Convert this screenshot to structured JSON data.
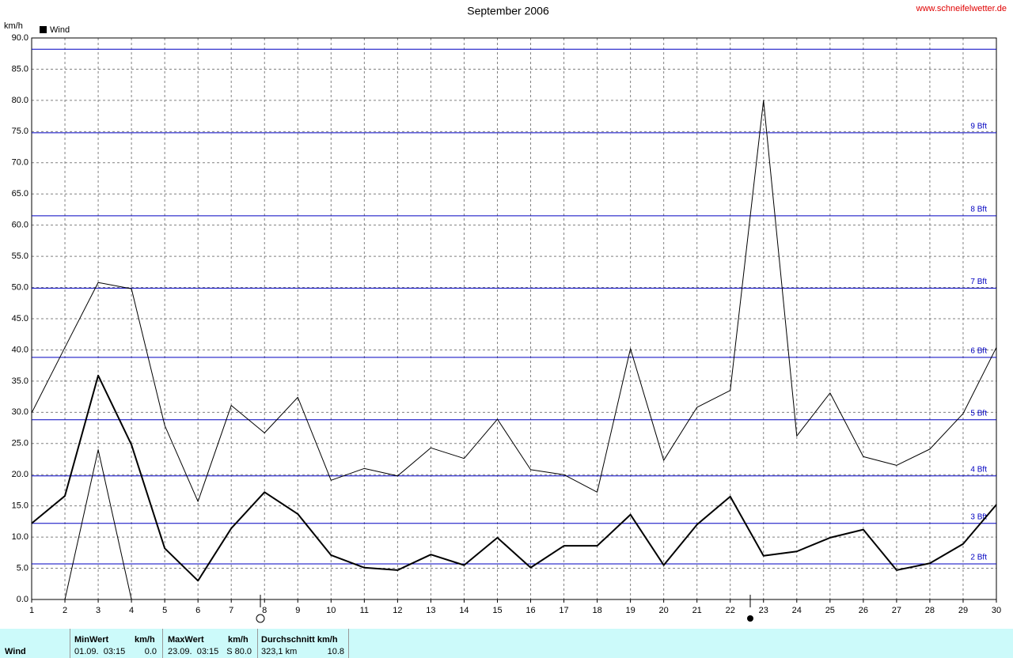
{
  "chart_data": {
    "type": "line",
    "title": "September 2006",
    "y_label": "km/h",
    "legend": {
      "label": "Wind",
      "color": "#000000",
      "position": "top-left"
    },
    "source": "www.schneifelwetter.de",
    "x": [
      1,
      2,
      3,
      4,
      5,
      6,
      7,
      8,
      9,
      10,
      11,
      12,
      13,
      14,
      15,
      16,
      17,
      18,
      19,
      20,
      21,
      22,
      23,
      24,
      25,
      26,
      27,
      28,
      29,
      30
    ],
    "xlim": [
      1,
      30
    ],
    "xticks": [
      1,
      2,
      3,
      4,
      5,
      6,
      7,
      8,
      9,
      10,
      11,
      12,
      13,
      14,
      15,
      16,
      17,
      18,
      19,
      20,
      21,
      22,
      23,
      24,
      25,
      26,
      27,
      28,
      29,
      30
    ],
    "ylim": [
      0,
      90
    ],
    "yticks": [
      {
        "value": 0,
        "label": "0.0"
      },
      {
        "value": 5,
        "label": "5.0"
      },
      {
        "value": 10,
        "label": "10.0"
      },
      {
        "value": 15,
        "label": "15.0"
      },
      {
        "value": 20,
        "label": "20.0"
      },
      {
        "value": 25,
        "label": "25.0"
      },
      {
        "value": 30,
        "label": "30.0"
      },
      {
        "value": 35,
        "label": "35.0"
      },
      {
        "value": 40,
        "label": "40.0"
      },
      {
        "value": 45,
        "label": "45.0"
      },
      {
        "value": 50,
        "label": "50.0"
      },
      {
        "value": 55,
        "label": "55.0"
      },
      {
        "value": 60,
        "label": "60.0"
      },
      {
        "value": 65,
        "label": "65.0"
      },
      {
        "value": 70,
        "label": "70.0"
      },
      {
        "value": 75,
        "label": "75.0"
      },
      {
        "value": 80,
        "label": "80.0"
      },
      {
        "value": 85,
        "label": "85.0"
      },
      {
        "value": 90,
        "label": "90.0"
      }
    ],
    "grid": true,
    "reference_color": "#0000c0",
    "reference_lines": [
      {
        "value": 5.7,
        "label": "2 Bft"
      },
      {
        "value": 12.2,
        "label": "3 Bft"
      },
      {
        "value": 19.8,
        "label": "4 Bft"
      },
      {
        "value": 28.8,
        "label": "5 Bft"
      },
      {
        "value": 38.8,
        "label": "6 Bft"
      },
      {
        "value": 49.9,
        "label": "7 Bft"
      },
      {
        "value": 61.5,
        "label": "8 Bft"
      },
      {
        "value": 74.8,
        "label": "9 Bft"
      },
      {
        "value": 88.2
      }
    ],
    "series": [
      {
        "color": "#000000",
        "width": 2,
        "values": [
          12.2,
          16.6,
          35.9,
          24.8,
          8.2,
          3.0,
          11.4,
          17.2,
          13.7,
          7.1,
          5.1,
          4.7,
          7.2,
          5.5,
          9.9,
          5.1,
          8.6,
          8.6,
          13.6,
          5.5,
          12.0,
          16.5,
          7.0,
          7.7,
          9.9,
          11.2,
          4.7,
          5.8,
          8.9,
          15.2
        ]
      },
      {
        "color": "#000000",
        "width": 1,
        "values": [
          29.9,
          40.4,
          50.8,
          49.8,
          27.9,
          15.7,
          31.1,
          26.7,
          32.4,
          19.1,
          21.0,
          19.8,
          24.3,
          22.6,
          28.9,
          20.8,
          20.0,
          17.2,
          40.2,
          22.3,
          30.8,
          33.5,
          80.0,
          26.2,
          33.1,
          22.9,
          21.5,
          24.1,
          29.8,
          40.4
        ]
      },
      {
        "color": "#000000",
        "width": 1,
        "values": [
          0,
          0,
          24,
          0,
          0,
          0,
          0,
          0,
          0,
          0,
          0,
          0,
          0,
          0,
          0,
          0,
          0,
          0,
          0,
          0,
          0,
          0,
          0,
          0,
          0,
          0,
          0,
          0,
          0,
          0
        ]
      }
    ]
  },
  "stats": {
    "row_label": "Wind",
    "min_header": "MinWert",
    "min_unit": "km/h",
    "min_when": "01.09.  03:15",
    "min_value": "0.0",
    "max_header": "MaxWert",
    "max_unit": "km/h",
    "max_when": "23.09.  03:15",
    "max_value": "S 80.0",
    "avg_header": "Durchschnitt km/h",
    "avg_distance": "323,1 km",
    "avg_value": "10.8"
  }
}
